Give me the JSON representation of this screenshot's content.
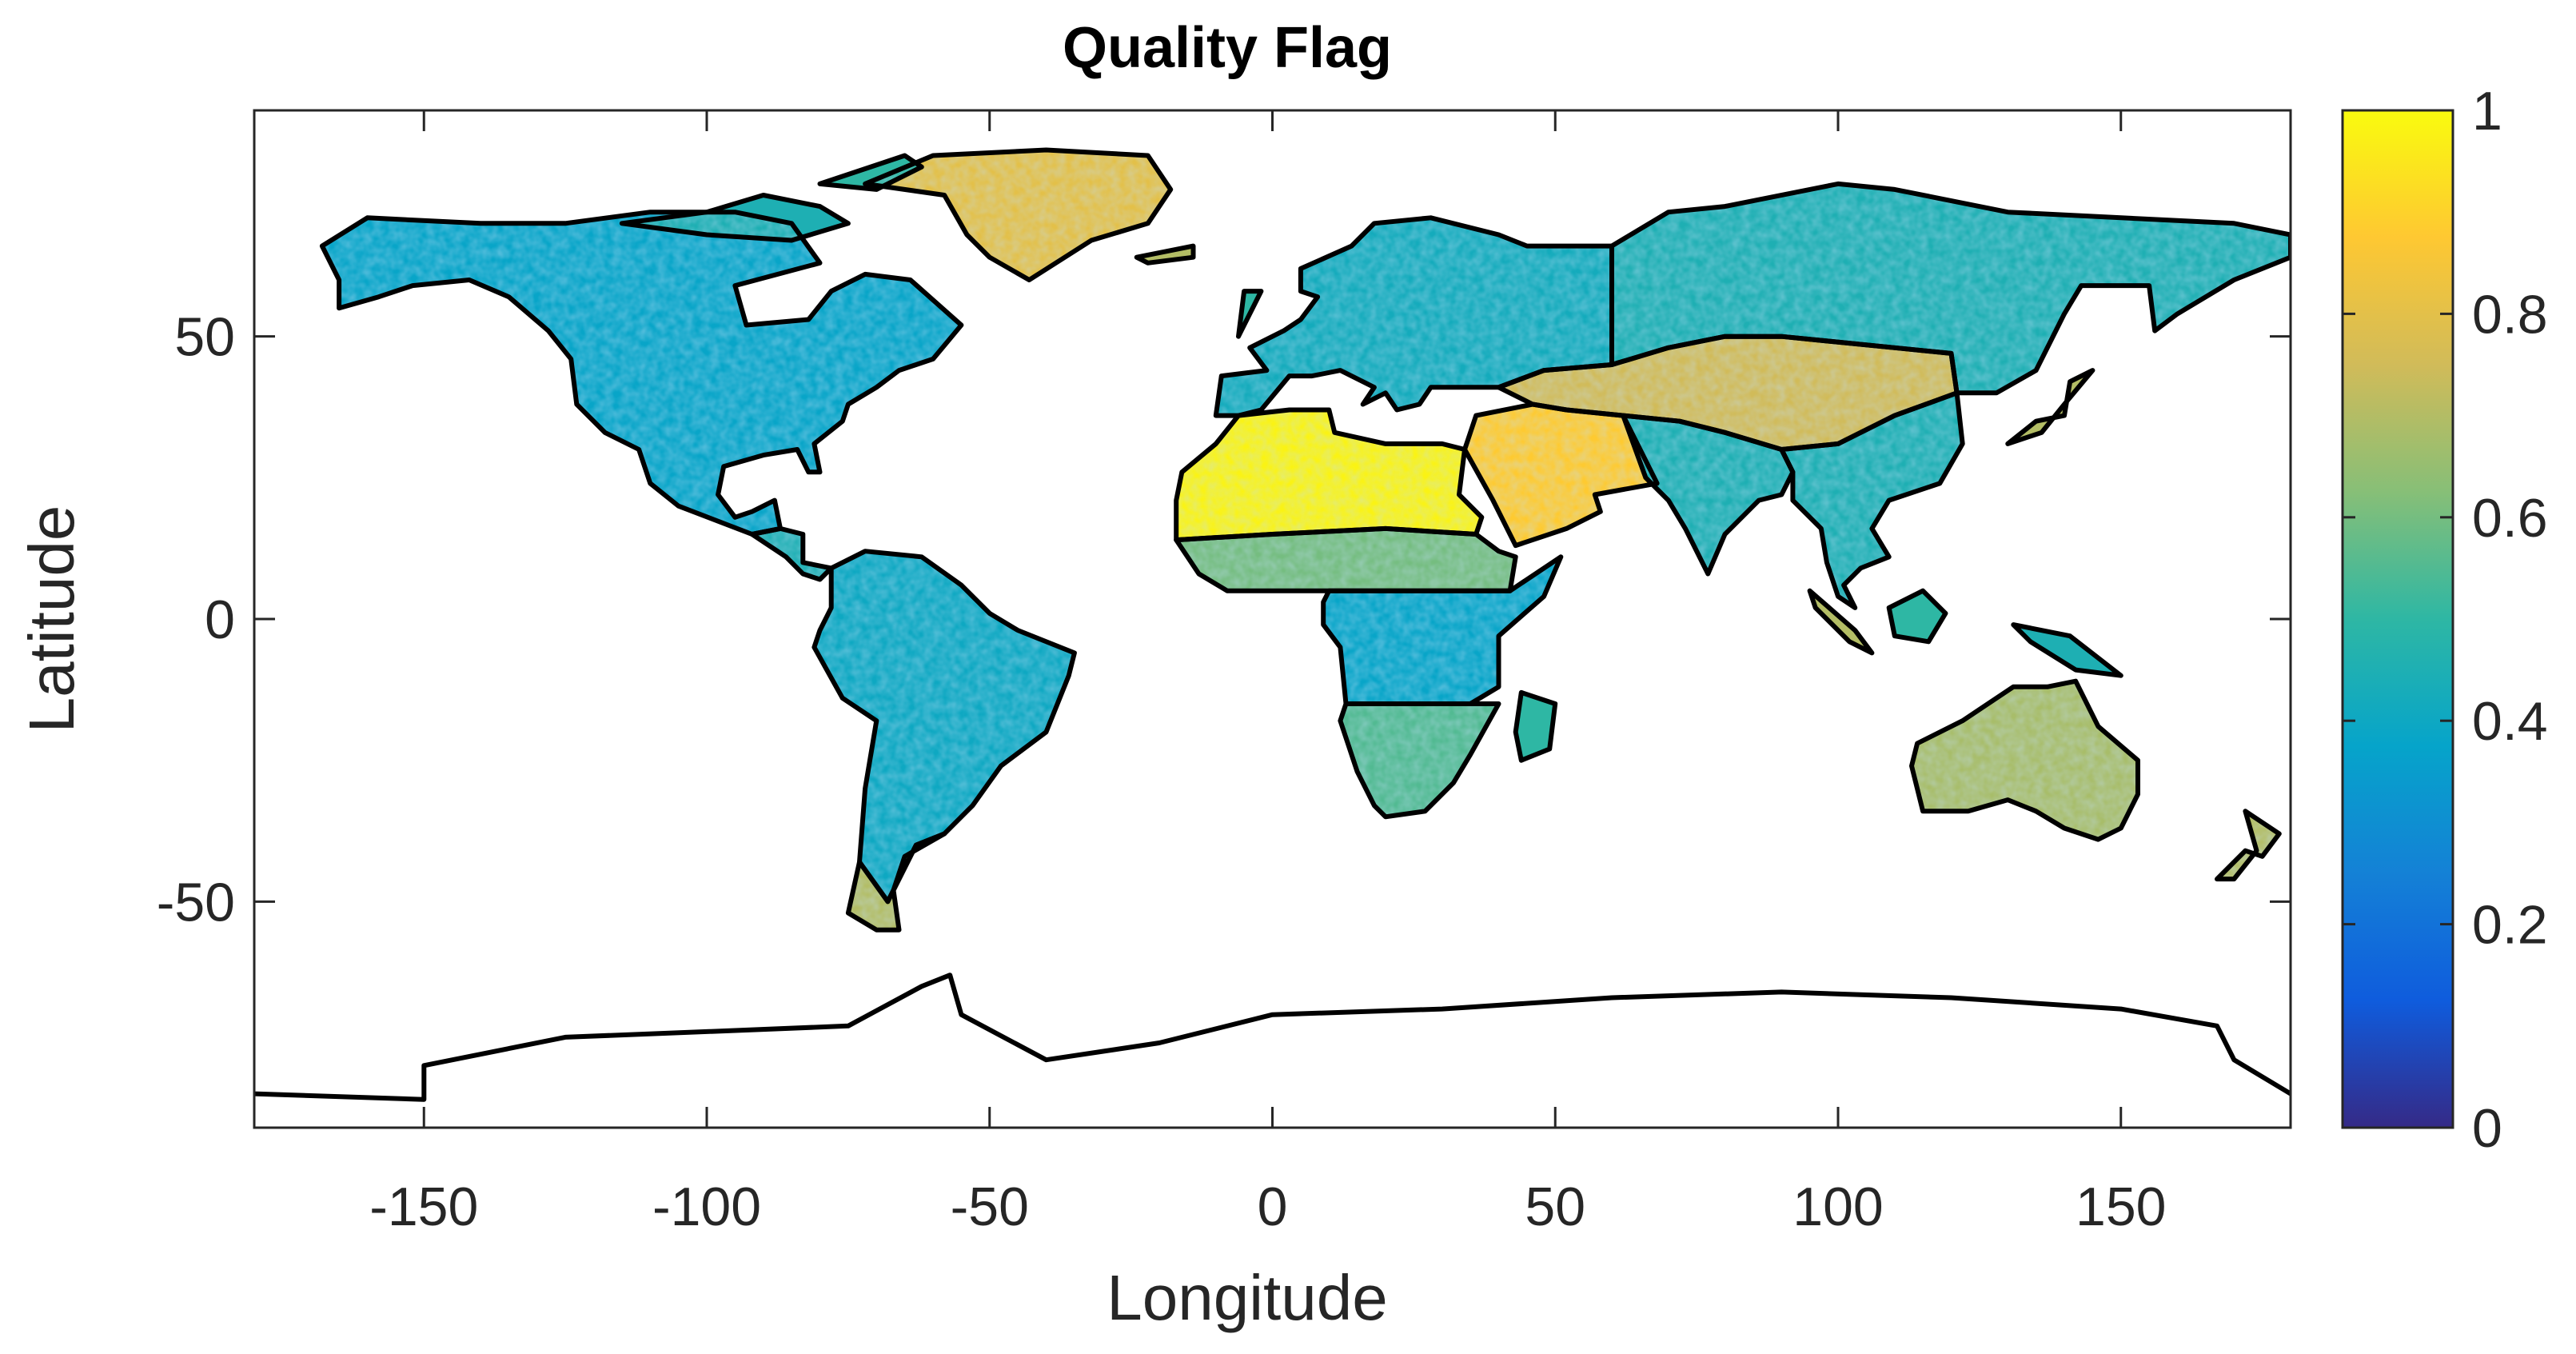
{
  "chart_data": {
    "type": "heatmap",
    "title": "Quality Flag",
    "xlabel": "Longitude",
    "ylabel": "Latitude",
    "xlim": [
      -180,
      180
    ],
    "ylim": [
      -90,
      90
    ],
    "xticks": [
      -150,
      -100,
      -50,
      0,
      50,
      100,
      150
    ],
    "xtick_labels": [
      "-150",
      "-100",
      "-50",
      "0",
      "50",
      "100",
      "150"
    ],
    "yticks": [
      -50,
      0,
      50
    ],
    "ytick_labels": [
      "-50",
      "0",
      "50"
    ],
    "colorbar": {
      "colormap": "parula",
      "clim": [
        0,
        1
      ],
      "ticks": [
        0,
        0.2,
        0.4,
        0.6,
        0.8,
        1
      ],
      "tick_labels": [
        "0",
        "0.2",
        "0.4",
        "0.6",
        "0.8",
        "1"
      ],
      "colors": [
        "#352a87",
        "#0f5cdd",
        "#1481d6",
        "#06a4ca",
        "#2eb7a4",
        "#87bf77",
        "#d1bb59",
        "#fec832",
        "#f9fb0e"
      ]
    },
    "grid": false,
    "regions": [
      {
        "name": "North America",
        "value": 0.38
      },
      {
        "name": "Greenland",
        "value": 0.8
      },
      {
        "name": "Central America",
        "value": 0.45
      },
      {
        "name": "South America",
        "value": 0.4
      },
      {
        "name": "Patagonia",
        "value": 0.7
      },
      {
        "name": "Europe",
        "value": 0.42
      },
      {
        "name": "Northern Asia",
        "value": 0.45
      },
      {
        "name": "Central Asia",
        "value": 0.75
      },
      {
        "name": "Sahara",
        "value": 0.98
      },
      {
        "name": "Arabia",
        "value": 0.88
      },
      {
        "name": "Sahel",
        "value": 0.6
      },
      {
        "name": "Central Africa",
        "value": 0.38
      },
      {
        "name": "Southern Africa",
        "value": 0.55
      },
      {
        "name": "South Asia",
        "value": 0.45
      },
      {
        "name": "Southeast Asia",
        "value": 0.45
      },
      {
        "name": "Australia",
        "value": 0.68
      },
      {
        "name": "New Zealand",
        "value": 0.7
      }
    ]
  }
}
